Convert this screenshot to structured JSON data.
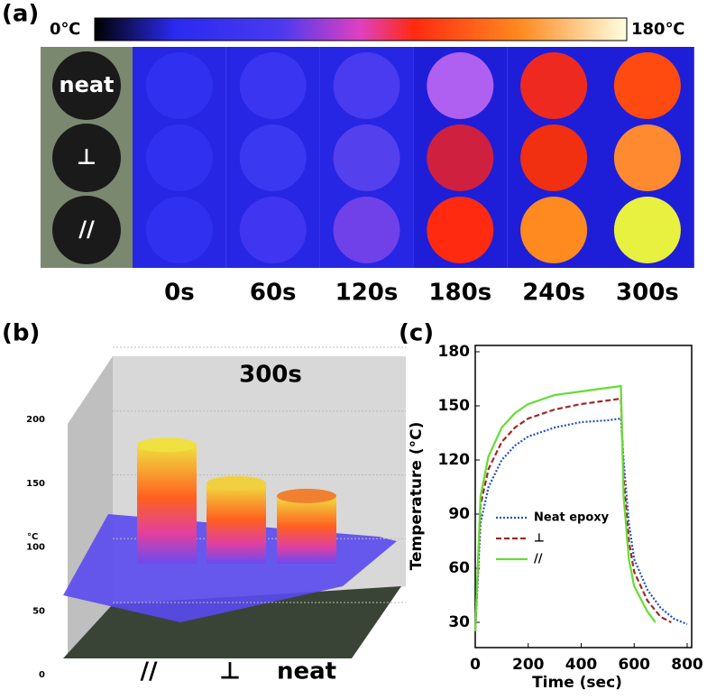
{
  "panel_a": {
    "label": "(a)",
    "scale_min": "0℃",
    "scale_max": "180℃",
    "rows": [
      "neat",
      "⊥",
      "//"
    ],
    "times": [
      "0s",
      "60s",
      "120s",
      "180s",
      "240s",
      "300s"
    ],
    "cell_colors": [
      [
        "#3030f0",
        "#3a35f0",
        "#4a3af0",
        "#b060f0",
        "#ee2a20",
        "#ff4a10"
      ],
      [
        "#3030f0",
        "#3a38f0",
        "#5540ee",
        "#d02040",
        "#f03010",
        "#ff8a30"
      ],
      [
        "#3030f0",
        "#4035f0",
        "#7040e8",
        "#ff2a10",
        "#ff8a20",
        "#e8f040"
      ]
    ]
  },
  "panel_b": {
    "label": "(b)",
    "title": "300s",
    "z_unit": "°C",
    "zlim": [
      0,
      200
    ],
    "zticks": [
      0,
      50,
      100,
      150,
      200
    ],
    "categories": [
      "//",
      "⊥",
      "neat"
    ],
    "values": [
      180,
      150,
      140
    ]
  },
  "chart_data": {
    "type": "line",
    "label": "(c)",
    "x_label": "Time (sec)",
    "y_label": "Temperature (°C)",
    "xlim": [
      0,
      800
    ],
    "ylim": [
      15,
      180
    ],
    "xticks": [
      0,
      200,
      400,
      600,
      800
    ],
    "yticks": [
      30,
      60,
      90,
      120,
      150,
      180
    ],
    "series": [
      {
        "name": "Neat epoxy",
        "color": "#2050c0",
        "dash": "2,2",
        "x": [
          0,
          20,
          50,
          100,
          150,
          200,
          300,
          400,
          500,
          550,
          560,
          580,
          600,
          650,
          700,
          750,
          800
        ],
        "values": [
          25,
          85,
          105,
          120,
          128,
          133,
          138,
          141,
          142,
          143,
          120,
          85,
          65,
          48,
          38,
          32,
          29
        ]
      },
      {
        "name": "⊥",
        "color": "#a02828",
        "dash": "6,3",
        "x": [
          0,
          20,
          50,
          100,
          150,
          200,
          300,
          400,
          500,
          550,
          560,
          580,
          600,
          650,
          700,
          740
        ],
        "values": [
          25,
          95,
          115,
          130,
          138,
          143,
          148,
          151,
          153,
          154,
          110,
          75,
          58,
          42,
          33,
          30
        ]
      },
      {
        "name": "//",
        "color": "#66dd33",
        "dash": "",
        "x": [
          0,
          20,
          50,
          100,
          150,
          200,
          300,
          400,
          500,
          550,
          560,
          580,
          600,
          650,
          680
        ],
        "values": [
          25,
          100,
          122,
          138,
          146,
          151,
          156,
          158,
          160,
          161,
          100,
          65,
          50,
          36,
          30
        ]
      }
    ]
  }
}
